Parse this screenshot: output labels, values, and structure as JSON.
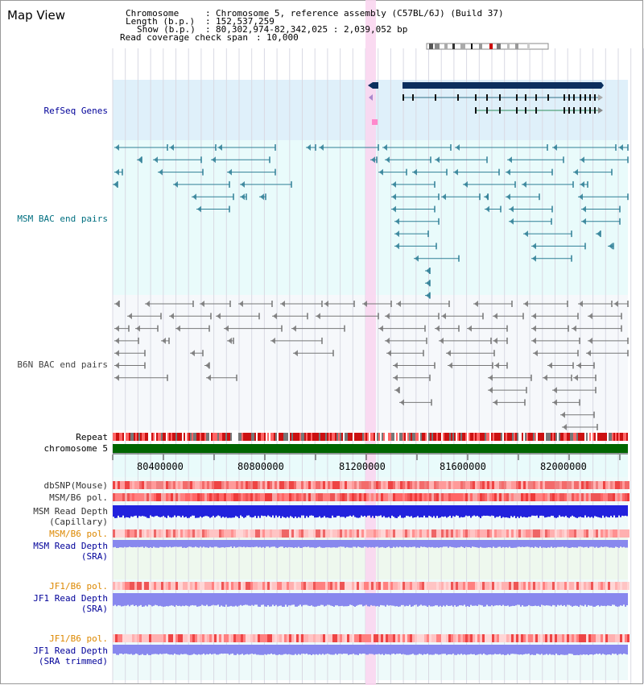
{
  "title": "Map View",
  "info": {
    "chromosome_key": "Chromosome",
    "chromosome_val": "Chromosome 5, reference assembly (C57BL/6J) (Build 37)",
    "length_key": "Length (b.p.)",
    "length_val": "152,537,259",
    "show_key": "Show (b.p.)",
    "show_val": "80,302,974-82,342,025 : 2,039,052 bp",
    "span_key": "Read coverage check span",
    "span_val": "10,000"
  },
  "tracks": {
    "refseq": "RefSeq Genes",
    "msm_bac": "MSM BAC end pairs",
    "b6n_bac": "B6N BAC end pairs",
    "repeat": "Repeat",
    "chromosome": "chromosome 5",
    "dbsnp": "dbSNP(Mouse)",
    "msm_b6_pol_1": "MSM/B6 pol.",
    "msm_read_depth_cap_1": "MSM Read Depth",
    "msm_read_depth_cap_2": "(Capillary)",
    "msm_b6_pol_2": "MSM/B6 pol.",
    "msm_read_depth_sra_1": "MSM Read Depth",
    "msm_read_depth_sra_2": "(SRA)",
    "jf1_b6_pol_1": "JF1/B6 pol.",
    "jf1_read_depth_sra_1": "JF1 Read Depth",
    "jf1_read_depth_sra_2": "(SRA)",
    "jf1_b6_pol_2": "JF1/B6 pol.",
    "jf1_read_depth_trim_1": "JF1 Read Depth",
    "jf1_read_depth_trim_2": "(SRA trimmed)"
  },
  "axis": {
    "ticks": [
      "80400000",
      "80800000",
      "81200000",
      "81600000",
      "82000000"
    ]
  },
  "colors": {
    "refseq_bg": "#dff0fa",
    "msm_bg": "#e9fbfb",
    "highlight": "#f9d6f0",
    "gene": "#0b2f5e",
    "msm_pair": "#2f7f96",
    "b6n_pair": "#777777",
    "chromosome": "#006600",
    "depth_capillary": "#2222dd",
    "depth_sra": "#8888ee",
    "label_blue": "#000099",
    "label_orange": "#dd8800",
    "label_teal": "#006f80"
  }
}
